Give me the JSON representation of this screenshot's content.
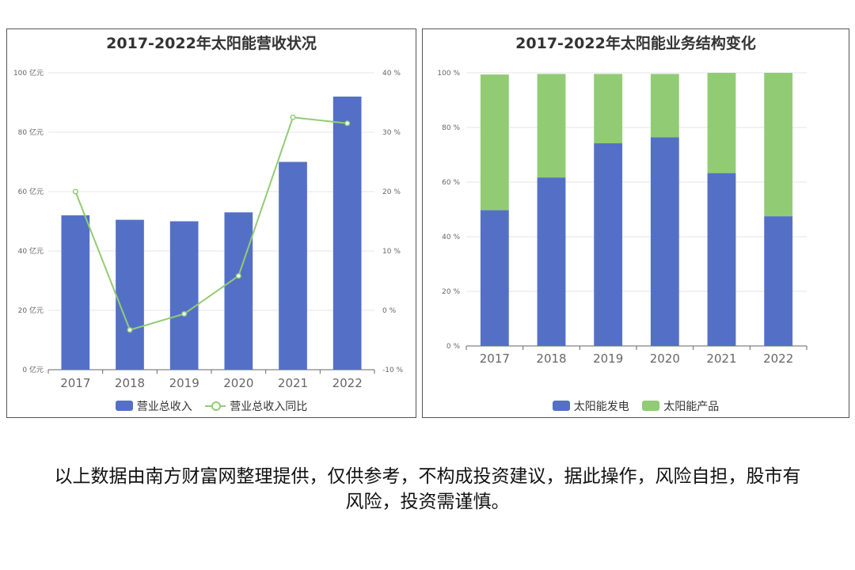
{
  "chart_data": [
    {
      "type": "bar",
      "title": "2017-2022年太阳能营收状况",
      "categories": [
        "2017",
        "2018",
        "2019",
        "2020",
        "2021",
        "2022"
      ],
      "series": [
        {
          "name": "营业总收入",
          "type": "bar",
          "axis": "left",
          "values": [
            52,
            50.5,
            50,
            53,
            70,
            92
          ]
        },
        {
          "name": "营业总收入同比",
          "type": "line",
          "axis": "right",
          "values": [
            20,
            -3.3,
            -0.6,
            5.8,
            32.5,
            31.5
          ]
        }
      ],
      "y_left": {
        "min": 0,
        "max": 100,
        "ticks": [
          0,
          20,
          40,
          60,
          80,
          100
        ],
        "unit": "亿元"
      },
      "y_right": {
        "min": -10,
        "max": 40,
        "ticks": [
          -10,
          0,
          10,
          20,
          30,
          40
        ],
        "unit": "%"
      },
      "colors": {
        "bar": "#5470c6",
        "line": "#91cc75"
      },
      "legend": "bottom"
    },
    {
      "type": "bar",
      "stacked": true,
      "title": "2017-2022年太阳能业务结构变化",
      "categories": [
        "2017",
        "2018",
        "2019",
        "2020",
        "2021",
        "2022"
      ],
      "series": [
        {
          "name": "太阳能发电",
          "values": [
            49.7,
            61.7,
            74.2,
            76.4,
            63.3,
            47.5
          ]
        },
        {
          "name": "太阳能产品",
          "values": [
            49.7,
            37.9,
            25.4,
            23.2,
            36.7,
            52.5
          ]
        }
      ],
      "y": {
        "min": 0,
        "max": 100,
        "ticks": [
          0,
          20,
          40,
          60,
          80,
          100
        ],
        "unit": "%"
      },
      "colors": {
        "s1": "#5470c6",
        "s2": "#91cc75"
      },
      "legend": "bottom"
    }
  ],
  "disclaimer": "以上数据由南方财富网整理提供，仅供参考，不构成投资建议，据此操作，风险自担，股市有风险，投资需谨慎。"
}
